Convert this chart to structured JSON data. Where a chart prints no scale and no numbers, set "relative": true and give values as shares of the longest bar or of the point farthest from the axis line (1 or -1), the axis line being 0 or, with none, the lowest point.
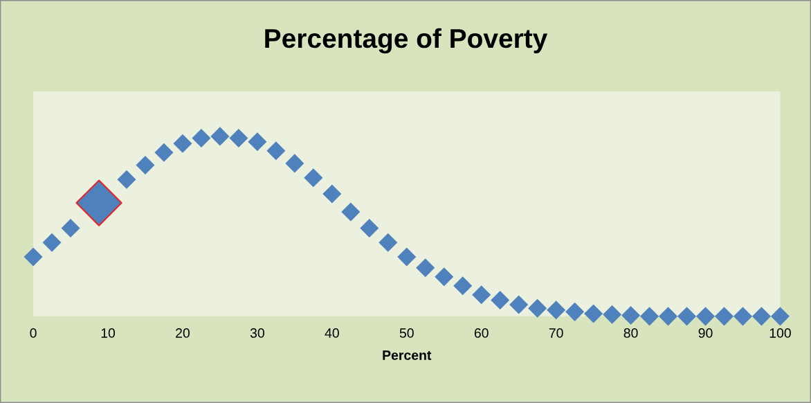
{
  "chart_data": {
    "type": "scatter",
    "title": "Percentage of Poverty",
    "xlabel": "Percent",
    "relative": true,
    "marker": "diamond",
    "grid": false,
    "xlim": [
      0,
      100
    ],
    "xticks": [
      0,
      10,
      20,
      30,
      40,
      50,
      60,
      70,
      80,
      90,
      100
    ],
    "series": [
      {
        "color": "#4f81bd",
        "x": [
          0,
          2.5,
          5,
          7.5,
          10,
          12.5,
          15,
          17.5,
          20,
          22.5,
          25,
          27.5,
          30,
          32.5,
          35,
          37.5,
          40,
          42.5,
          45,
          47.5,
          50,
          52.5,
          55,
          57.5,
          60,
          62.5,
          65,
          67.5,
          70,
          72.5,
          75,
          77.5,
          80,
          82.5,
          85,
          87.5,
          90,
          92.5,
          95,
          97.5,
          100
        ],
        "values": [
          0.33,
          0.41,
          0.49,
          null,
          null,
          0.76,
          0.84,
          0.91,
          0.96,
          0.99,
          1.0,
          0.99,
          0.97,
          0.92,
          0.85,
          0.77,
          0.68,
          0.58,
          0.49,
          0.41,
          0.33,
          0.27,
          0.22,
          0.17,
          0.12,
          0.09,
          0.065,
          0.045,
          0.035,
          0.025,
          0.015,
          0.01,
          0.005,
          0.0,
          0.0,
          0.0,
          0.0,
          0.0,
          0.0,
          0.0,
          0.0
        ]
      },
      {
        "color": "#4f81bd",
        "x": [
          8.8
        ],
        "values": [
          0.63
        ]
      }
    ]
  }
}
